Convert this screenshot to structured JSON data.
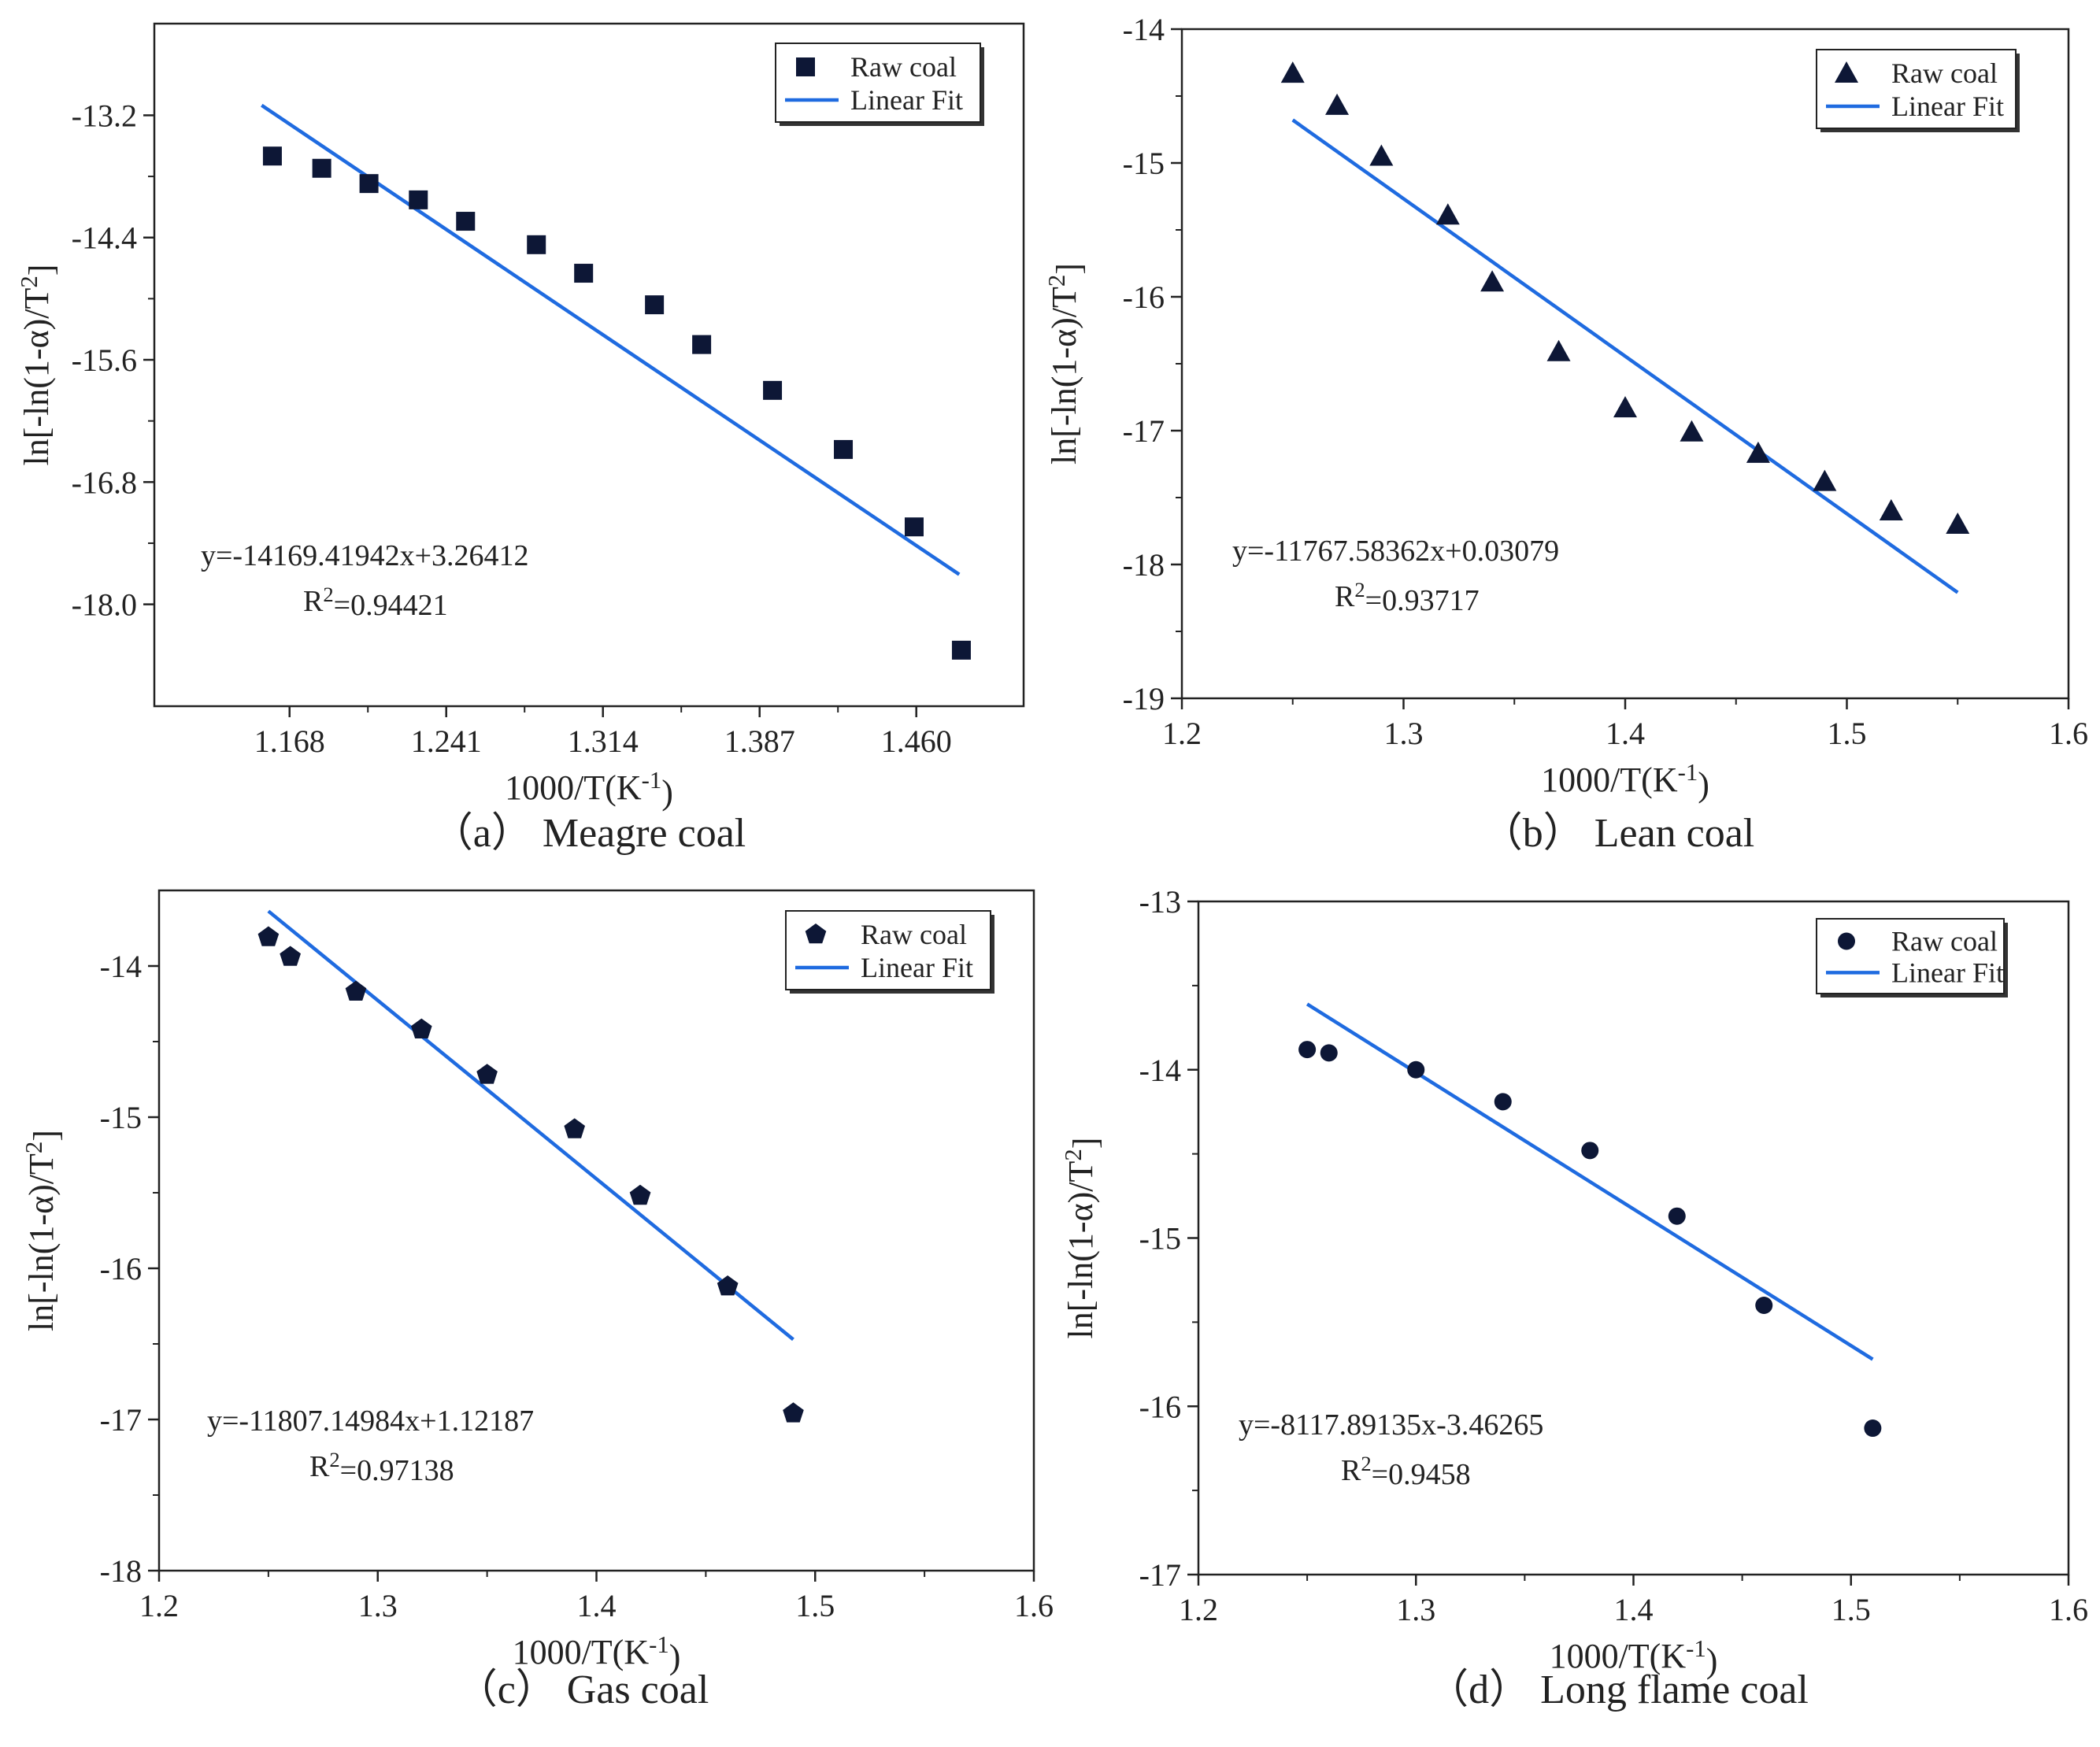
{
  "colors": {
    "marker": "#0d1736",
    "fit_line": "#1f6be0",
    "axis": "#222222"
  },
  "chart_data": [
    {
      "id": "a",
      "type": "scatter",
      "caption": "（a） Meagre coal",
      "xlabel": "1000/T(K",
      "xlabel_sup": "-1",
      "xlabel_end": ")",
      "ylabel": "ln[-ln(1-α)/T",
      "ylabel_sup": "2",
      "ylabel_end": "]",
      "xlim": [
        1.105,
        1.51
      ],
      "ylim": [
        -19.0,
        -12.3
      ],
      "xticks": [
        1.168,
        1.241,
        1.314,
        1.387,
        1.46
      ],
      "xtick_labels": [
        "1.168",
        "1.241",
        "1.314",
        "1.387",
        "1.460"
      ],
      "yticks": [
        -13.2,
        -14.4,
        -15.6,
        -16.8,
        -18.0
      ],
      "ytick_labels": [
        "-13.2",
        "-14.4",
        "-15.6",
        "-16.8",
        "-18.0"
      ],
      "marker": "square",
      "legend": {
        "position": "top-right",
        "points_label": "Raw coal",
        "line_label": "Linear Fit"
      },
      "points": [
        {
          "x": 1.16,
          "y": -13.6
        },
        {
          "x": 1.183,
          "y": -13.72
        },
        {
          "x": 1.205,
          "y": -13.87
        },
        {
          "x": 1.228,
          "y": -14.03
        },
        {
          "x": 1.25,
          "y": -14.24
        },
        {
          "x": 1.283,
          "y": -14.47
        },
        {
          "x": 1.305,
          "y": -14.75
        },
        {
          "x": 1.338,
          "y": -15.06
        },
        {
          "x": 1.36,
          "y": -15.45
        },
        {
          "x": 1.393,
          "y": -15.9
        },
        {
          "x": 1.426,
          "y": -16.48
        },
        {
          "x": 1.459,
          "y": -17.24
        },
        {
          "x": 1.481,
          "y": -18.45
        }
      ],
      "fit": {
        "slope": -14169.41942,
        "intercept": 3.26412,
        "x_start": 1.155,
        "x_end": 1.48
      },
      "equation": "y=-14169.41942x+3.26412",
      "r2_prefix": "R",
      "r2_sup": "2",
      "r2_value": "=0.94421"
    },
    {
      "id": "b",
      "type": "scatter",
      "caption": "（b） Lean coal",
      "xlabel": "1000/T(K",
      "xlabel_sup": "-1",
      "xlabel_end": ")",
      "ylabel": "ln[-ln(1-α)/T",
      "ylabel_sup": "2",
      "ylabel_end": "]",
      "xlim": [
        1.2,
        1.6
      ],
      "ylim": [
        -19,
        -14
      ],
      "xticks": [
        1.2,
        1.3,
        1.4,
        1.5,
        1.6
      ],
      "xtick_labels": [
        "1.2",
        "1.3",
        "1.4",
        "1.5",
        "1.6"
      ],
      "yticks": [
        -14,
        -15,
        -16,
        -17,
        -18,
        -19
      ],
      "ytick_labels": [
        "-14",
        "-15",
        "-16",
        "-17",
        "-18",
        "-19"
      ],
      "marker": "triangle",
      "legend": {
        "position": "top-right",
        "points_label": "Raw coal",
        "line_label": "Linear Fit"
      },
      "points": [
        {
          "x": 1.25,
          "y": -14.33
        },
        {
          "x": 1.27,
          "y": -14.57
        },
        {
          "x": 1.29,
          "y": -14.95
        },
        {
          "x": 1.32,
          "y": -15.39
        },
        {
          "x": 1.34,
          "y": -15.89
        },
        {
          "x": 1.37,
          "y": -16.41
        },
        {
          "x": 1.4,
          "y": -16.83
        },
        {
          "x": 1.43,
          "y": -17.01
        },
        {
          "x": 1.46,
          "y": -17.17
        },
        {
          "x": 1.49,
          "y": -17.38
        },
        {
          "x": 1.52,
          "y": -17.6
        },
        {
          "x": 1.55,
          "y": -17.7
        }
      ],
      "fit": {
        "slope": -11767.58362,
        "intercept": 0.03079,
        "x_start": 1.25,
        "x_end": 1.55
      },
      "equation": "y=-11767.58362x+0.03079",
      "r2_prefix": "R",
      "r2_sup": "2",
      "r2_value": "=0.93717"
    },
    {
      "id": "c",
      "type": "scatter",
      "caption": "（c） Gas coal",
      "xlabel": "1000/T(K",
      "xlabel_sup": "-1",
      "xlabel_end": ")",
      "ylabel": "ln[-ln(1-α)/T",
      "ylabel_sup": "2",
      "ylabel_end": "]",
      "xlim": [
        1.2,
        1.6
      ],
      "ylim": [
        -18,
        -13.5
      ],
      "xticks": [
        1.2,
        1.3,
        1.4,
        1.5,
        1.6
      ],
      "xtick_labels": [
        "1.2",
        "1.3",
        "1.4",
        "1.5",
        "1.6"
      ],
      "yticks": [
        -14,
        -15,
        -16,
        -17,
        -18
      ],
      "ytick_labels": [
        "-14",
        "-15",
        "-16",
        "-17",
        "-18"
      ],
      "marker": "pentagon",
      "legend": {
        "position": "top-right",
        "points_label": "Raw coal",
        "line_label": "Linear Fit"
      },
      "points": [
        {
          "x": 1.25,
          "y": -13.81
        },
        {
          "x": 1.26,
          "y": -13.94
        },
        {
          "x": 1.29,
          "y": -14.17
        },
        {
          "x": 1.32,
          "y": -14.42
        },
        {
          "x": 1.35,
          "y": -14.72
        },
        {
          "x": 1.39,
          "y": -15.08
        },
        {
          "x": 1.42,
          "y": -15.52
        },
        {
          "x": 1.46,
          "y": -16.12
        },
        {
          "x": 1.49,
          "y": -16.96
        }
      ],
      "fit": {
        "slope": -11807.14984,
        "intercept": 1.12187,
        "x_start": 1.25,
        "x_end": 1.49
      },
      "equation": "y=-11807.14984x+1.12187",
      "r2_prefix": "R",
      "r2_sup": "2",
      "r2_value": "=0.97138"
    },
    {
      "id": "d",
      "type": "scatter",
      "caption": "（d） Long flame coal",
      "xlabel": "1000/T(K",
      "xlabel_sup": "-1",
      "xlabel_end": ")",
      "ylabel": "ln[-ln(1-α)/T",
      "ylabel_sup": "2",
      "ylabel_end": "]",
      "xlim": [
        1.2,
        1.6
      ],
      "ylim": [
        -17,
        -13
      ],
      "xticks": [
        1.2,
        1.3,
        1.4,
        1.5,
        1.6
      ],
      "xtick_labels": [
        "1.2",
        "1.3",
        "1.4",
        "1.5",
        "1.6"
      ],
      "yticks": [
        -13,
        -14,
        -15,
        -16,
        -17
      ],
      "ytick_labels": [
        "-13",
        "-14",
        "-15",
        "-16",
        "-17"
      ],
      "marker": "circle",
      "legend": {
        "position": "top-right",
        "points_label": "Raw coal",
        "line_label": "Linear Fit"
      },
      "points": [
        {
          "x": 1.25,
          "y": -13.88
        },
        {
          "x": 1.26,
          "y": -13.9
        },
        {
          "x": 1.3,
          "y": -14.0
        },
        {
          "x": 1.34,
          "y": -14.19
        },
        {
          "x": 1.38,
          "y": -14.48
        },
        {
          "x": 1.42,
          "y": -14.87
        },
        {
          "x": 1.46,
          "y": -15.4
        },
        {
          "x": 1.51,
          "y": -16.13
        }
      ],
      "fit": {
        "slope": -8117.89135,
        "intercept": -3.46265,
        "x_start": 1.25,
        "x_end": 1.51
      },
      "equation": "y=-8117.89135x-3.46265",
      "r2_prefix": "R",
      "r2_sup": "2",
      "r2_value": "=0.9458"
    }
  ]
}
